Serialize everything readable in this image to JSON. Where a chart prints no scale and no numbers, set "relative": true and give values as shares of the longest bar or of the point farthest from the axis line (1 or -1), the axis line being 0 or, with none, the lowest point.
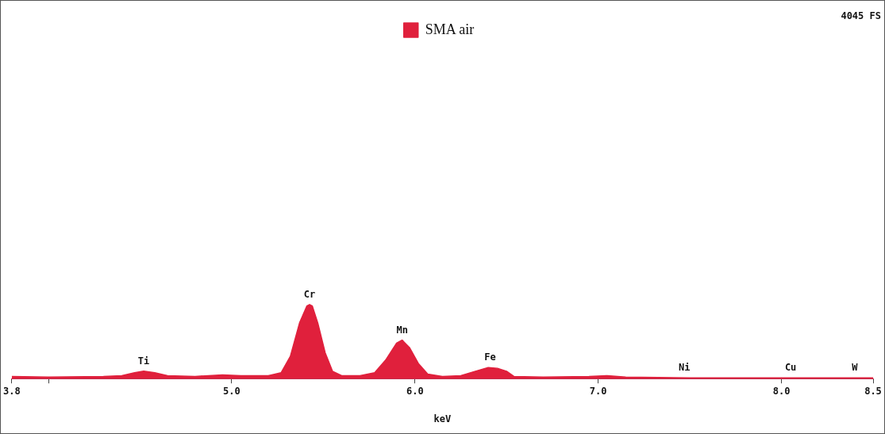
{
  "chart_data": {
    "type": "area",
    "relative": true,
    "xlabel": "keV",
    "legend": "top",
    "xlim": [
      3.8,
      8.5
    ],
    "xticks": [
      {
        "value": 3.8,
        "label": "3.8"
      },
      {
        "value": 4.0,
        "label": null
      },
      {
        "value": 5.0,
        "label": "5.0"
      },
      {
        "value": 6.0,
        "label": "6.0"
      },
      {
        "value": 7.0,
        "label": "7.0"
      },
      {
        "value": 8.0,
        "label": "8.0"
      },
      {
        "value": 8.5,
        "label": "8.5"
      }
    ],
    "series": [
      {
        "name": "SMA air",
        "color": "#e0203c",
        "x": [
          3.8,
          4.0,
          4.3,
          4.4,
          4.47,
          4.52,
          4.58,
          4.65,
          4.8,
          4.95,
          5.05,
          5.2,
          5.27,
          5.32,
          5.37,
          5.41,
          5.425,
          5.44,
          5.47,
          5.51,
          5.55,
          5.6,
          5.7,
          5.78,
          5.84,
          5.9,
          5.93,
          5.97,
          6.02,
          6.07,
          6.15,
          6.25,
          6.33,
          6.4,
          6.45,
          6.5,
          6.54,
          6.7,
          6.95,
          7.05,
          7.15,
          7.5,
          8.0,
          8.5
        ],
        "values": [
          0.03,
          0.02,
          0.03,
          0.04,
          0.08,
          0.1,
          0.08,
          0.04,
          0.03,
          0.05,
          0.04,
          0.04,
          0.08,
          0.3,
          0.75,
          0.98,
          1.0,
          0.98,
          0.75,
          0.35,
          0.1,
          0.04,
          0.04,
          0.08,
          0.25,
          0.48,
          0.52,
          0.42,
          0.2,
          0.06,
          0.03,
          0.04,
          0.1,
          0.15,
          0.14,
          0.1,
          0.03,
          0.02,
          0.03,
          0.04,
          0.02,
          0.01,
          0.01,
          0.01
        ]
      }
    ],
    "annotations": [
      {
        "text": "Ti",
        "x": 4.52,
        "y": 0.1
      },
      {
        "text": "Cr",
        "x": 5.425,
        "y": 1.0
      },
      {
        "text": "Mn",
        "x": 5.93,
        "y": 0.52
      },
      {
        "text": "Fe",
        "x": 6.41,
        "y": 0.15
      },
      {
        "text": "Ni",
        "x": 7.47,
        "y": 0.01
      },
      {
        "text": "Cu",
        "x": 8.05,
        "y": 0.01
      },
      {
        "text": "W",
        "x": 8.4,
        "y": 0.01
      },
      "4045 FS"
    ]
  }
}
